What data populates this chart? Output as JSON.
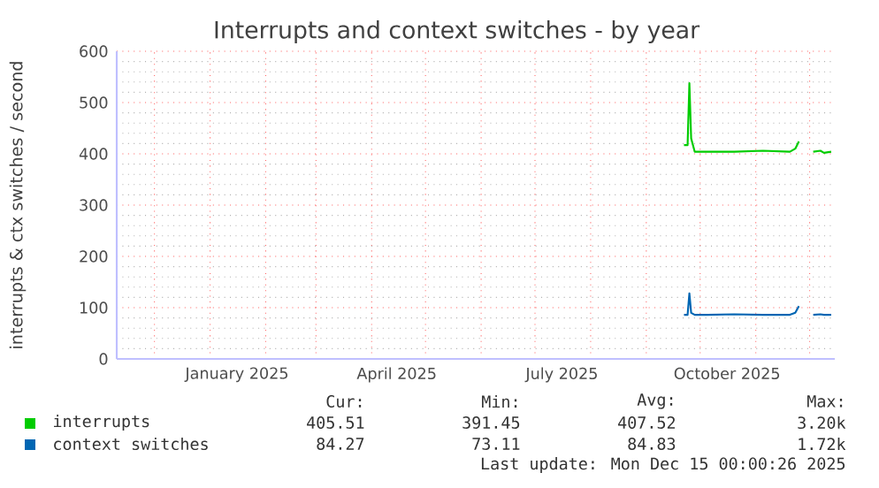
{
  "chart_data": {
    "type": "line",
    "title": "Interrupts and context switches - by year",
    "ylabel": "interrupts & ctx switches / second",
    "series": [
      {
        "name": "interrupts",
        "color": "#00cc00",
        "x": [
          "2025-09-22",
          "2025-09-24",
          "2025-09-25",
          "2025-09-26",
          "2025-09-28",
          "2025-10-05",
          "2025-10-20",
          "2025-11-05",
          "2025-11-20",
          "2025-11-23",
          "2025-11-25"
        ],
        "values": [
          417,
          417,
          538,
          430,
          404,
          404,
          404,
          406,
          404,
          410,
          424
        ]
      },
      {
        "name": "context switches",
        "color": "#0066b3",
        "x": [
          "2025-09-22",
          "2025-09-24",
          "2025-09-25",
          "2025-09-26",
          "2025-09-28",
          "2025-10-05",
          "2025-10-20",
          "2025-11-05",
          "2025-11-20",
          "2025-11-23",
          "2025-11-25"
        ],
        "values": [
          86,
          86,
          128,
          90,
          86,
          86,
          87,
          86,
          86,
          90,
          103
        ]
      },
      {
        "color": "#00cc00",
        "x": [
          "2025-12-03",
          "2025-12-07",
          "2025-12-09",
          "2025-12-13"
        ],
        "values": [
          404,
          406,
          402,
          404
        ]
      },
      {
        "color": "#0066b3",
        "x": [
          "2025-12-03",
          "2025-12-07",
          "2025-12-09",
          "2025-12-13"
        ],
        "values": [
          86,
          87,
          86,
          86
        ]
      }
    ],
    "xlim": [
      "2024-11-10",
      "2025-12-15"
    ],
    "xticks": [
      {
        "value": "2024-12-01",
        "label": null
      },
      {
        "value": "2025-01-01",
        "label": null
      },
      {
        "value": "2025-02-01",
        "label": null
      },
      {
        "value": "2025-03-01",
        "label": null
      },
      {
        "value": "2025-04-01",
        "label": null
      },
      {
        "value": "2025-05-01",
        "label": null
      },
      {
        "value": "2025-06-01",
        "label": null
      },
      {
        "value": "2025-07-01",
        "label": null
      },
      {
        "value": "2025-08-01",
        "label": null
      },
      {
        "value": "2025-09-01",
        "label": null
      },
      {
        "value": "2025-10-01",
        "label": null
      },
      {
        "value": "2025-11-01",
        "label": null
      },
      {
        "value": "2025-12-01",
        "label": null
      },
      {
        "value": "2025-01-16",
        "label": "January 2025"
      },
      {
        "value": "2025-04-15",
        "label": "April 2025"
      },
      {
        "value": "2025-07-16",
        "label": "July 2025"
      },
      {
        "value": "2025-10-16",
        "label": "October 2025"
      }
    ],
    "ylim": [
      0,
      600
    ],
    "yticks": [
      0,
      100,
      200,
      300,
      400,
      500,
      600
    ],
    "grid": true,
    "legend": "bottom",
    "marker": "none",
    "line_style": "solid",
    "annotations": [
      "Cur:",
      "Min:",
      "Avg:",
      "Max:",
      "405.51",
      "391.45",
      "407.52",
      "3.20k",
      "84.27",
      "73.11",
      "84.83",
      "1.72k",
      "Last update: Mon Dec 15 00:00:26 2025"
    ]
  }
}
